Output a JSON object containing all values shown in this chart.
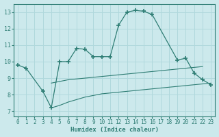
{
  "xlabel": "Humidex (Indice chaleur)",
  "bg_color": "#cce9ec",
  "grid_color": "#b0d8dc",
  "line_color": "#2e7d74",
  "xlim": [
    -0.5,
    23.5
  ],
  "ylim": [
    6.7,
    13.5
  ],
  "xticks": [
    0,
    1,
    2,
    3,
    4,
    5,
    6,
    7,
    8,
    9,
    10,
    11,
    12,
    13,
    14,
    15,
    16,
    17,
    18,
    19,
    20,
    21,
    22,
    23
  ],
  "yticks": [
    7,
    8,
    9,
    10,
    11,
    12,
    13
  ],
  "line1_x": [
    0,
    1,
    3,
    4,
    5,
    6,
    7,
    8,
    9,
    10,
    11,
    12,
    13,
    14,
    15,
    16,
    19,
    20,
    21,
    22,
    23
  ],
  "line1_y": [
    9.8,
    9.6,
    8.2,
    7.2,
    10.0,
    10.0,
    10.8,
    10.75,
    10.3,
    10.3,
    10.3,
    12.2,
    13.0,
    13.1,
    13.05,
    12.85,
    10.1,
    10.2,
    9.3,
    8.9,
    8.6
  ],
  "line2_x": [
    4,
    5,
    6,
    7,
    8,
    9,
    10,
    11,
    12,
    13,
    14,
    15,
    16,
    17,
    18,
    19,
    20,
    21,
    22
  ],
  "line2_y": [
    8.7,
    8.8,
    8.9,
    8.95,
    9.0,
    9.05,
    9.1,
    9.15,
    9.2,
    9.25,
    9.3,
    9.35,
    9.4,
    9.45,
    9.5,
    9.55,
    9.6,
    9.65,
    9.7
  ],
  "line3_x": [
    4,
    5,
    6,
    7,
    8,
    9,
    10,
    11,
    12,
    13,
    14,
    15,
    16,
    17,
    18,
    19,
    20,
    21,
    22,
    23
  ],
  "line3_y": [
    7.2,
    7.35,
    7.55,
    7.7,
    7.85,
    7.95,
    8.05,
    8.1,
    8.15,
    8.2,
    8.25,
    8.3,
    8.35,
    8.4,
    8.45,
    8.5,
    8.55,
    8.6,
    8.65,
    8.7
  ]
}
